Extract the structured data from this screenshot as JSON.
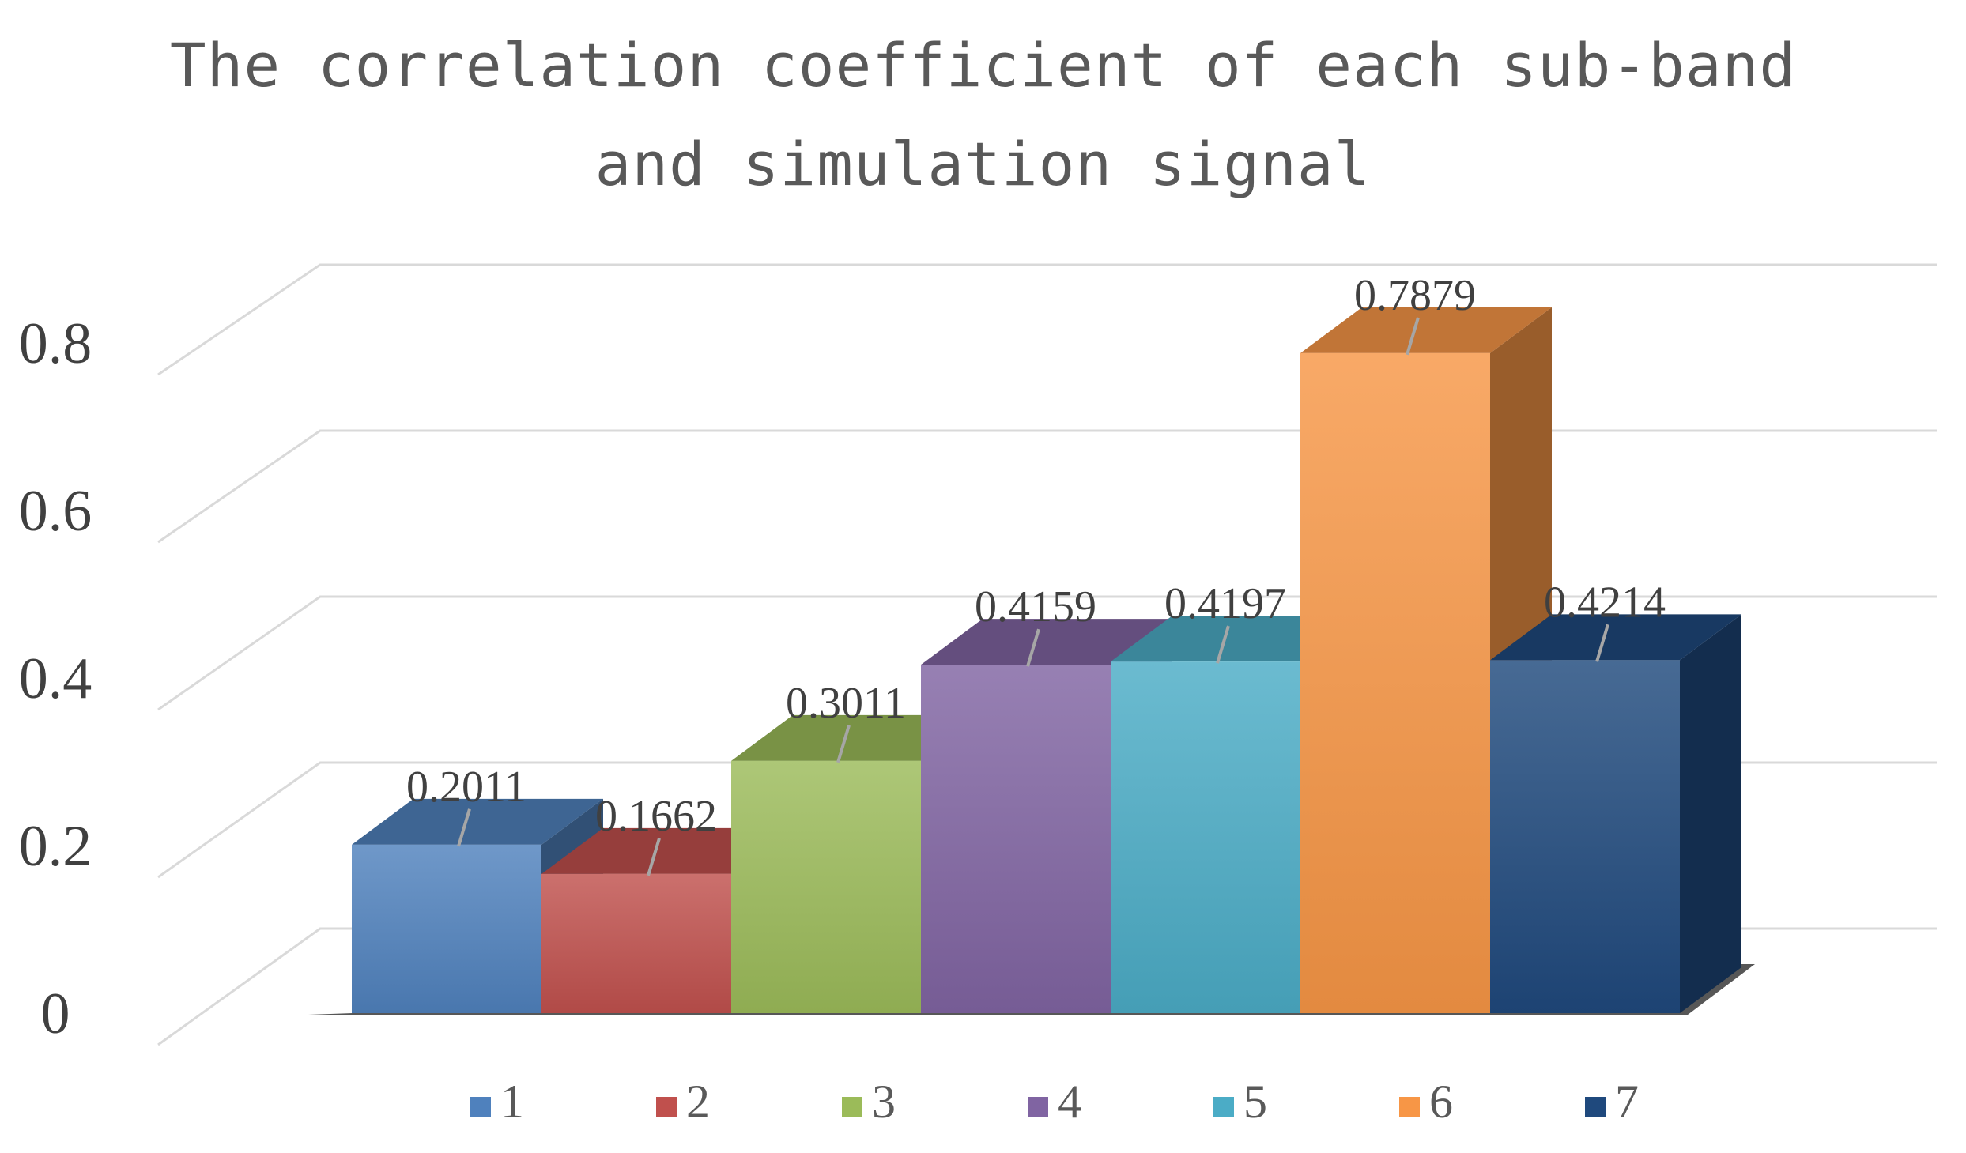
{
  "chart_data": {
    "type": "bar",
    "title": "The correlation coefficient of each sub-band and simulation signal",
    "title_lines": [
      "The correlation coefficient of each sub-band",
      "and simulation signal"
    ],
    "xlabel": "",
    "ylabel": "",
    "ylim": [
      0,
      0.8
    ],
    "yticks": [
      "0",
      "0.2",
      "0.4",
      "0.6",
      "0.8"
    ],
    "grid": true,
    "style": "3d-clustered-column",
    "legend_position": "bottom",
    "series": [
      {
        "name": "1",
        "value": 0.2011,
        "label": "0.2011",
        "color": "#4F81BD"
      },
      {
        "name": "2",
        "value": 0.1662,
        "label": "0.1662",
        "color": "#C0504D"
      },
      {
        "name": "3",
        "value": 0.3011,
        "label": "0.3011",
        "color": "#9BBB59"
      },
      {
        "name": "4",
        "value": 0.4159,
        "label": "0.4159",
        "color": "#8064A2"
      },
      {
        "name": "5",
        "value": 0.4197,
        "label": "0.4197",
        "color": "#4BACC6"
      },
      {
        "name": "6",
        "value": 0.7879,
        "label": "0.7879",
        "color": "#F79646"
      },
      {
        "name": "7",
        "value": 0.4214,
        "label": "0.4214",
        "color": "#1F497D"
      }
    ]
  }
}
